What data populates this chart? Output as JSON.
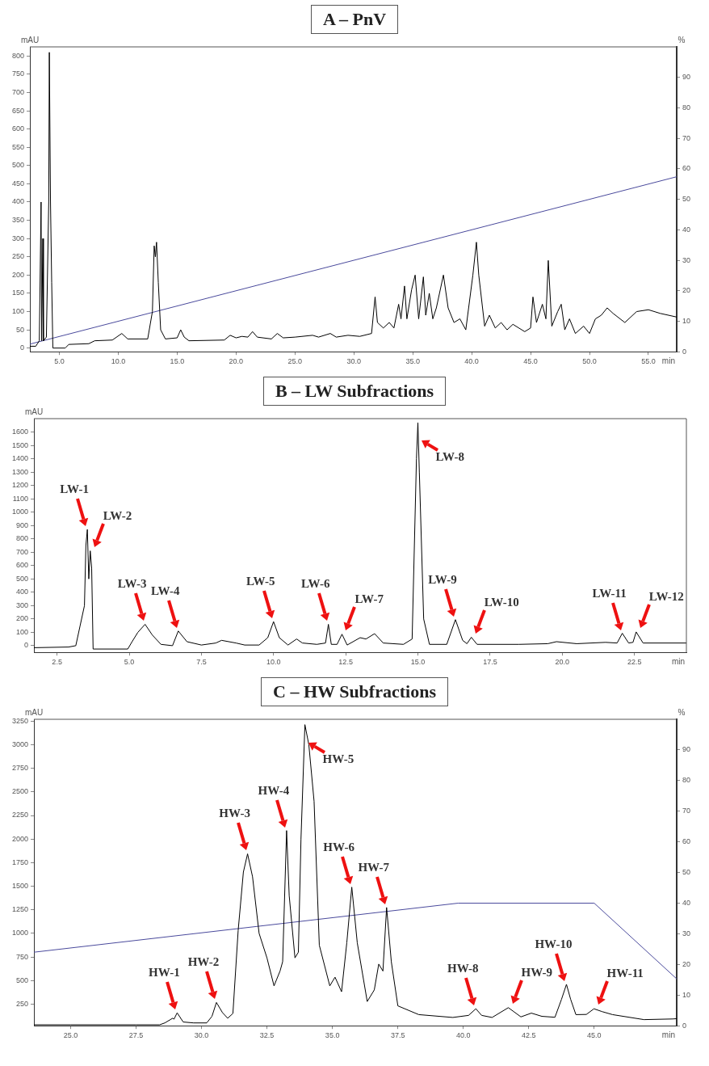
{
  "chart_data": [
    {
      "type": "line",
      "title": "A – PnV",
      "xlabel": "min",
      "ylabel": "mAU",
      "y2label": "%",
      "grid": false,
      "xlim": [
        2.5,
        57.4
      ],
      "xticks": [
        {
          "value": 5,
          "label": "5.0"
        },
        {
          "value": 10,
          "label": "10.0"
        },
        {
          "value": 15,
          "label": "15.0"
        },
        {
          "value": 20,
          "label": "20.0"
        },
        {
          "value": 25,
          "label": "25.0"
        },
        {
          "value": 30,
          "label": "30.0"
        },
        {
          "value": 35,
          "label": "35.0"
        },
        {
          "value": 40,
          "label": "40.0"
        },
        {
          "value": 45,
          "label": "45.0"
        },
        {
          "value": 50,
          "label": "50.0"
        },
        {
          "value": 55,
          "label": "55.0"
        }
      ],
      "ylim": [
        -10,
        825
      ],
      "yticks": [
        0,
        50,
        100,
        150,
        200,
        250,
        300,
        350,
        400,
        450,
        500,
        550,
        600,
        650,
        700,
        750,
        800
      ],
      "y2lim": [
        0,
        100
      ],
      "y2ticks": [
        0,
        10,
        20,
        30,
        40,
        50,
        60,
        70,
        80,
        90
      ],
      "series": [
        {
          "color": "#000000",
          "x": [
            2.5,
            3.0,
            3.3,
            3.45,
            3.5,
            3.6,
            3.65,
            3.9,
            4.1,
            4.15,
            4.25,
            4.35,
            4.45,
            5.5,
            5.8,
            7.5,
            8.0,
            9.5,
            10.3,
            10.8,
            12.5,
            12.9,
            13.05,
            13.15,
            13.25,
            13.4,
            13.6,
            14.0,
            15.0,
            15.3,
            15.6,
            16.0,
            19.0,
            19.5,
            20.0,
            20.5,
            21.0,
            21.4,
            21.8,
            23.0,
            23.5,
            24.0,
            25.0,
            26.5,
            27.0,
            28.0,
            28.5,
            29.5,
            30.5,
            31.5,
            31.8,
            32.0,
            32.5,
            33.0,
            33.4,
            33.8,
            34.0,
            34.3,
            34.5,
            34.9,
            35.2,
            35.5,
            35.9,
            36.1,
            36.4,
            36.7,
            37.0,
            37.6,
            38.0,
            38.5,
            39.0,
            39.5,
            40.1,
            40.4,
            40.6,
            41.1,
            41.5,
            42.0,
            42.5,
            43.0,
            43.5,
            44.5,
            45.0,
            45.2,
            45.5,
            46.0,
            46.3,
            46.5,
            46.8,
            47.3,
            47.6,
            47.9,
            48.3,
            48.8,
            49.5,
            50.0,
            50.5,
            51.0,
            51.5,
            52.0,
            53.0,
            54.0,
            55.0,
            56.0,
            57.4
          ],
          "values": [
            5,
            5,
            20,
            400,
            20,
            300,
            20,
            30,
            400,
            810,
            400,
            180,
            0,
            0,
            10,
            12,
            20,
            22,
            40,
            25,
            25,
            100,
            280,
            250,
            290,
            180,
            50,
            25,
            28,
            50,
            30,
            20,
            22,
            35,
            28,
            32,
            30,
            45,
            30,
            25,
            40,
            28,
            30,
            35,
            30,
            40,
            30,
            35,
            32,
            40,
            140,
            70,
            55,
            70,
            55,
            120,
            80,
            170,
            80,
            160,
            200,
            80,
            195,
            90,
            150,
            80,
            110,
            200,
            110,
            70,
            80,
            50,
            200,
            290,
            200,
            60,
            90,
            55,
            70,
            50,
            65,
            45,
            55,
            140,
            70,
            120,
            80,
            240,
            60,
            100,
            120,
            50,
            80,
            40,
            60,
            40,
            80,
            90,
            110,
            95,
            70,
            100,
            105,
            95,
            85
          ]
        },
        {
          "color": "#4a4a9c",
          "axis": "y2",
          "x": [
            2.5,
            57.4
          ],
          "values": [
            2.5,
            57.4
          ]
        }
      ]
    },
    {
      "type": "line",
      "title": "B – LW Subfractions",
      "xlabel": "min",
      "ylabel": "mAU",
      "grid": false,
      "xlim": [
        1.7,
        24.3
      ],
      "xticks": [
        {
          "value": 2.5,
          "label": "2.5"
        },
        {
          "value": 5,
          "label": "5.0"
        },
        {
          "value": 7.5,
          "label": "7.5"
        },
        {
          "value": 10,
          "label": "10.0"
        },
        {
          "value": 12.5,
          "label": "12.5"
        },
        {
          "value": 15,
          "label": "15.0"
        },
        {
          "value": 17.5,
          "label": "17.5"
        },
        {
          "value": 20,
          "label": "20.0"
        },
        {
          "value": 22.5,
          "label": "22.5"
        }
      ],
      "ylim": [
        -50,
        1700
      ],
      "yticks": [
        0,
        100,
        200,
        300,
        400,
        500,
        600,
        700,
        800,
        900,
        1000,
        1100,
        1200,
        1300,
        1400,
        1500,
        1600
      ],
      "series": [
        {
          "color": "#000000",
          "x": [
            1.7,
            2.9,
            3.15,
            3.3,
            3.45,
            3.5,
            3.55,
            3.6,
            3.65,
            3.7,
            3.75,
            4.95,
            5.1,
            5.3,
            5.55,
            5.8,
            6.1,
            6.5,
            6.7,
            7.0,
            7.5,
            8.0,
            8.2,
            8.7,
            9.0,
            9.5,
            9.8,
            10.0,
            10.2,
            10.5,
            10.8,
            11.0,
            11.5,
            11.8,
            11.9,
            12.0,
            12.2,
            12.37,
            12.55,
            13.0,
            13.2,
            13.5,
            13.8,
            14.5,
            14.8,
            14.95,
            15.0,
            15.05,
            15.2,
            15.4,
            16.0,
            16.3,
            16.55,
            16.7,
            16.85,
            17.05,
            18.5,
            19.5,
            19.8,
            20.5,
            21.5,
            21.9,
            22.08,
            22.3,
            22.45,
            22.56,
            22.8,
            24.3
          ],
          "values": [
            -15,
            -10,
            0,
            150,
            300,
            750,
            870,
            500,
            710,
            580,
            -25,
            -25,
            30,
            100,
            160,
            80,
            10,
            0,
            110,
            30,
            5,
            20,
            40,
            20,
            5,
            5,
            60,
            180,
            60,
            5,
            50,
            20,
            10,
            20,
            160,
            10,
            10,
            86,
            5,
            60,
            50,
            90,
            20,
            10,
            50,
            1400,
            1670,
            1300,
            200,
            10,
            10,
            195,
            40,
            15,
            63,
            10,
            10,
            15,
            30,
            15,
            25,
            20,
            93,
            20,
            25,
            103,
            20,
            20
          ]
        }
      ],
      "annotations": [
        {
          "text": "LW-1",
          "x": 3.55,
          "y": 870
        },
        {
          "text": "LW-2",
          "x": 3.65,
          "y": 710
        },
        {
          "text": "LW-3",
          "x": 5.55,
          "y": 160
        },
        {
          "text": "LW-4",
          "x": 6.7,
          "y": 110
        },
        {
          "text": "LW-5",
          "x": 10.0,
          "y": 180
        },
        {
          "text": "LW-6",
          "x": 11.9,
          "y": 160
        },
        {
          "text": "LW-7",
          "x": 12.37,
          "y": 86
        },
        {
          "text": "LW-8",
          "x": 15.0,
          "y": 1670
        },
        {
          "text": "LW-9",
          "x": 16.3,
          "y": 195
        },
        {
          "text": "LW-10",
          "x": 16.85,
          "y": 63
        },
        {
          "text": "LW-11",
          "x": 22.08,
          "y": 93
        },
        {
          "text": "LW-12",
          "x": 22.56,
          "y": 103
        }
      ]
    },
    {
      "type": "line",
      "title": "C – HW Subfractions",
      "xlabel": "min",
      "ylabel": "mAU",
      "y2label": "%",
      "grid": false,
      "xlim": [
        23.6,
        48.15
      ],
      "xticks": [
        {
          "value": 25,
          "label": "25.0"
        },
        {
          "value": 27.5,
          "label": "27.5"
        },
        {
          "value": 30,
          "label": "30.0"
        },
        {
          "value": 32.5,
          "label": "32.5"
        },
        {
          "value": 35,
          "label": "35.0"
        },
        {
          "value": 37.5,
          "label": "37.5"
        },
        {
          "value": 40,
          "label": "40.0"
        },
        {
          "value": 42.5,
          "label": "42.5"
        },
        {
          "value": 45,
          "label": "45.0"
        }
      ],
      "ylim": [
        20,
        3270
      ],
      "yticks": [
        250,
        500,
        750,
        1000,
        1250,
        1500,
        1750,
        2000,
        2250,
        2500,
        2750,
        3000,
        3250
      ],
      "y2lim": [
        0,
        100
      ],
      "y2ticks": [
        0,
        10,
        20,
        30,
        40,
        50,
        60,
        70,
        80,
        90
      ],
      "series": [
        {
          "color": "#000000",
          "x": [
            23.6,
            25,
            26.5,
            27.5,
            28.4,
            28.6,
            28.75,
            28.9,
            28.95,
            29.07,
            29.3,
            29.7,
            30.2,
            30.4,
            30.57,
            30.8,
            31.0,
            31.2,
            31.4,
            31.6,
            31.76,
            31.95,
            32.2,
            32.5,
            32.77,
            33.0,
            33.1,
            33.25,
            33.35,
            33.57,
            33.7,
            33.8,
            33.95,
            34.1,
            34.3,
            34.5,
            34.9,
            35.1,
            35.35,
            35.55,
            35.74,
            35.95,
            36.33,
            36.6,
            36.77,
            36.93,
            37.07,
            37.25,
            37.5,
            38.3,
            39.6,
            40.2,
            40.48,
            40.7,
            41.1,
            41.72,
            42.2,
            42.6,
            43.0,
            43.5,
            43.75,
            43.94,
            44.1,
            44.3,
            44.7,
            44.99,
            45.3,
            45.7,
            46.9,
            48.0,
            48.15
          ],
          "values": [
            30,
            30,
            30,
            30,
            30,
            50,
            75,
            100,
            90,
            157,
            60,
            50,
            50,
            120,
            267,
            160,
            100,
            150,
            1028,
            1650,
            1843,
            1600,
            1000,
            740,
            443,
            600,
            700,
            2090,
            1400,
            740,
            800,
            2000,
            3213,
            3000,
            2400,
            874,
            443,
            535,
            381,
            900,
            1490,
            900,
            277,
            400,
            674,
            600,
            1274,
            700,
            231,
            138,
            108,
            130,
            200,
            130,
            108,
            212,
            114,
            154,
            120,
            110,
            300,
            459,
            300,
            138,
            140,
            200,
            170,
            138,
            85,
            92,
            95
          ]
        },
        {
          "color": "#4a4a9c",
          "axis": "y2",
          "x": [
            23.6,
            39.8,
            45.0,
            48.15
          ],
          "values": [
            24,
            40,
            40,
            15.3
          ]
        }
      ],
      "annotations": [
        {
          "text": "HW-1",
          "x": 29.07,
          "y": 157
        },
        {
          "text": "HW-2",
          "x": 30.57,
          "y": 267
        },
        {
          "text": "HW-3",
          "x": 31.76,
          "y": 1843
        },
        {
          "text": "HW-4",
          "x": 33.25,
          "y": 2090
        },
        {
          "text": "HW-5",
          "x": 33.95,
          "y": 3213
        },
        {
          "text": "HW-6",
          "x": 35.74,
          "y": 1490
        },
        {
          "text": "HW-7",
          "x": 37.07,
          "y": 1274
        },
        {
          "text": "HW-8",
          "x": 40.48,
          "y": 200
        },
        {
          "text": "HW-9",
          "x": 41.72,
          "y": 212
        },
        {
          "text": "HW-10",
          "x": 43.94,
          "y": 459
        },
        {
          "text": "HW-11",
          "x": 44.99,
          "y": 200
        }
      ]
    }
  ]
}
